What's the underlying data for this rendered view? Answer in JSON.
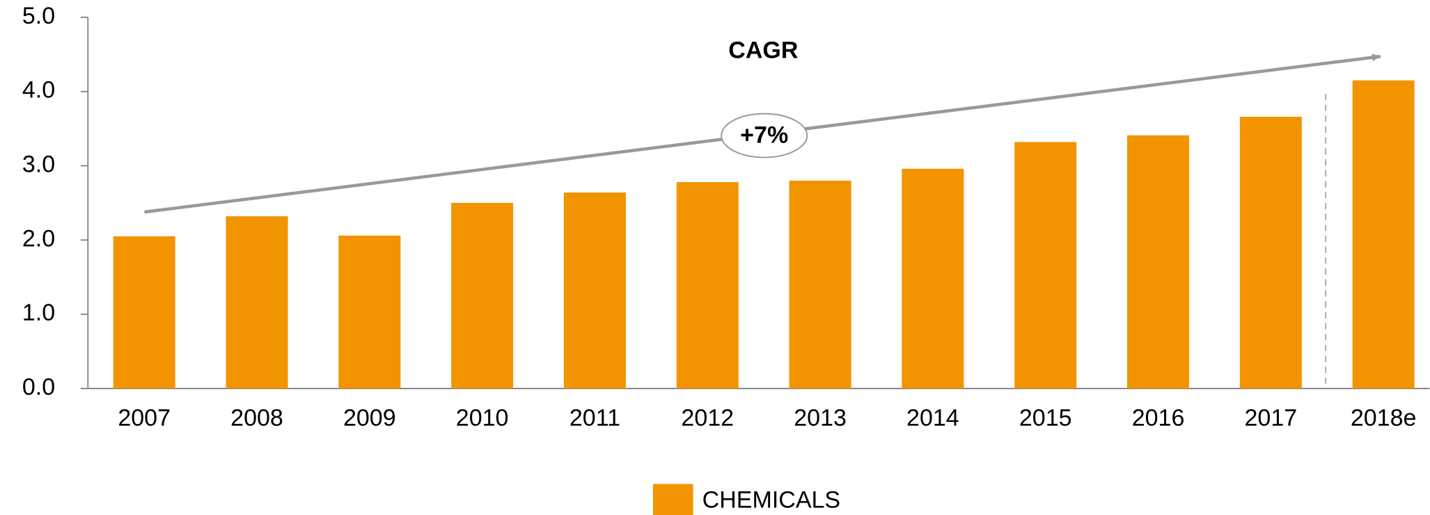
{
  "chart_data": {
    "type": "bar",
    "categories": [
      "2007",
      "2008",
      "2009",
      "2010",
      "2011",
      "2012",
      "2013",
      "2014",
      "2015",
      "2016",
      "2017",
      "2018e"
    ],
    "series": [
      {
        "name": "CHEMICALS",
        "color": "#f29400",
        "values": [
          2.05,
          2.32,
          2.06,
          2.5,
          2.64,
          2.78,
          2.8,
          2.96,
          3.32,
          3.41,
          3.66,
          4.15
        ]
      }
    ],
    "ylim": [
      0,
      5
    ],
    "yticks": [
      {
        "value": 0,
        "label": "0.0"
      },
      {
        "value": 1,
        "label": "1.0"
      },
      {
        "value": 2,
        "label": "2.0"
      },
      {
        "value": 3,
        "label": "3.0"
      },
      {
        "value": 4,
        "label": "4.0"
      },
      {
        "value": 5,
        "label": "5.0"
      }
    ],
    "grid": false,
    "legend": "bottom",
    "annotations": [
      "CAGR",
      "+7%"
    ]
  }
}
